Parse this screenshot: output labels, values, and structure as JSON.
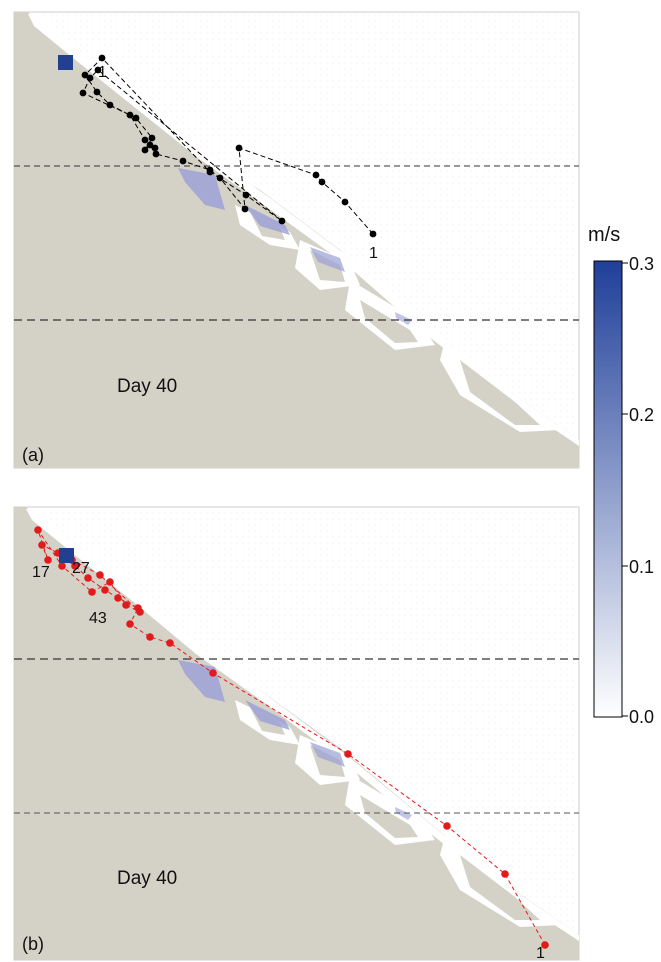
{
  "panels": [
    {
      "id": "a",
      "panel_label": "(a)",
      "day_label": "Day 40",
      "track_color": "#000000",
      "point_labels": [
        "1",
        "1"
      ]
    },
    {
      "id": "b",
      "panel_label": "(b)",
      "day_label": "Day 40",
      "track_color": "#e31a1c",
      "point_labels": [
        "17",
        "27",
        "43",
        "1"
      ]
    }
  ],
  "colorbar": {
    "unit": "m/s",
    "ticks": [
      "0.3",
      "0.2",
      "0.1",
      "0.0"
    ],
    "min": 0.0,
    "max": 0.3,
    "color_low": "#ffffff",
    "color_high": "#1f3f99"
  },
  "colors": {
    "land": "#d4d1c7",
    "water": "#ffffff",
    "speed_patch": "#9a9fd6",
    "release_marker": "#233f8f"
  },
  "icons": {
    "release_site": "blue-square-icon",
    "particle": "dot-icon"
  }
}
